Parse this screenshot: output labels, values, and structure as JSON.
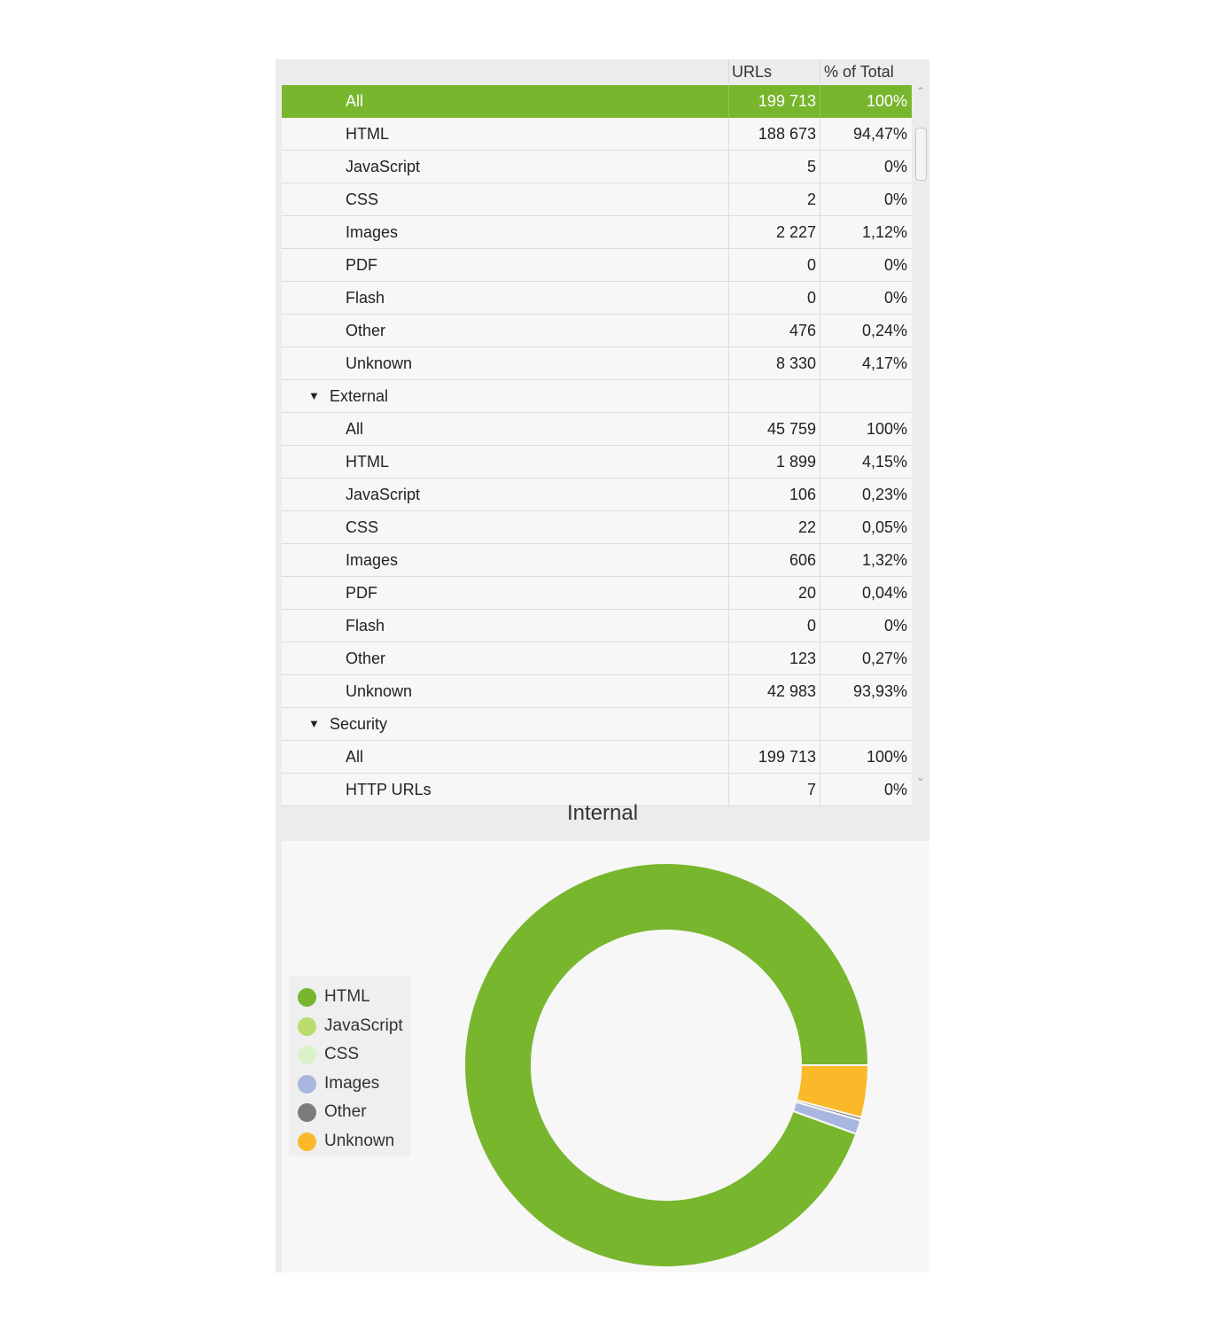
{
  "table": {
    "columns": [
      "",
      "URLs",
      "% of Total"
    ],
    "rows": [
      {
        "label": "All",
        "urls": "199 713",
        "pct": "100%",
        "selected": true
      },
      {
        "label": "HTML",
        "urls": "188 673",
        "pct": "94,47%"
      },
      {
        "label": "JavaScript",
        "urls": "5",
        "pct": "0%"
      },
      {
        "label": "CSS",
        "urls": "2",
        "pct": "0%"
      },
      {
        "label": "Images",
        "urls": "2 227",
        "pct": "1,12%"
      },
      {
        "label": "PDF",
        "urls": "0",
        "pct": "0%"
      },
      {
        "label": "Flash",
        "urls": "0",
        "pct": "0%"
      },
      {
        "label": "Other",
        "urls": "476",
        "pct": "0,24%"
      },
      {
        "label": "Unknown",
        "urls": "8 330",
        "pct": "4,17%"
      },
      {
        "label": "External",
        "urls": "",
        "pct": "",
        "group": true,
        "expanded": true
      },
      {
        "label": "All",
        "urls": "45 759",
        "pct": "100%"
      },
      {
        "label": "HTML",
        "urls": "1 899",
        "pct": "4,15%"
      },
      {
        "label": "JavaScript",
        "urls": "106",
        "pct": "0,23%"
      },
      {
        "label": "CSS",
        "urls": "22",
        "pct": "0,05%"
      },
      {
        "label": "Images",
        "urls": "606",
        "pct": "1,32%"
      },
      {
        "label": "PDF",
        "urls": "20",
        "pct": "0,04%"
      },
      {
        "label": "Flash",
        "urls": "0",
        "pct": "0%"
      },
      {
        "label": "Other",
        "urls": "123",
        "pct": "0,27%"
      },
      {
        "label": "Unknown",
        "urls": "42 983",
        "pct": "93,93%"
      },
      {
        "label": "Security",
        "urls": "",
        "pct": "",
        "group": true,
        "expanded": true
      },
      {
        "label": "All",
        "urls": "199 713",
        "pct": "100%"
      },
      {
        "label": "HTTP URLs",
        "urls": "7",
        "pct": "0%"
      }
    ]
  },
  "chart_data": {
    "type": "pie",
    "title": "Internal",
    "categories": [
      "HTML",
      "JavaScript",
      "CSS",
      "Images",
      "Other",
      "Unknown"
    ],
    "values": [
      188673,
      5,
      2,
      2227,
      476,
      8330
    ],
    "colors": [
      "#78b62e",
      "#b9dc6d",
      "#d9f2c9",
      "#a9b6df",
      "#7c7c7c",
      "#fbb929"
    ],
    "legend_position": "left"
  },
  "colors": {
    "selected_row": "#78b62e"
  },
  "icons": {
    "expanded": "triangle-down-icon",
    "scroll_up": "chevron-up-icon",
    "scroll_down": "chevron-down-icon"
  }
}
